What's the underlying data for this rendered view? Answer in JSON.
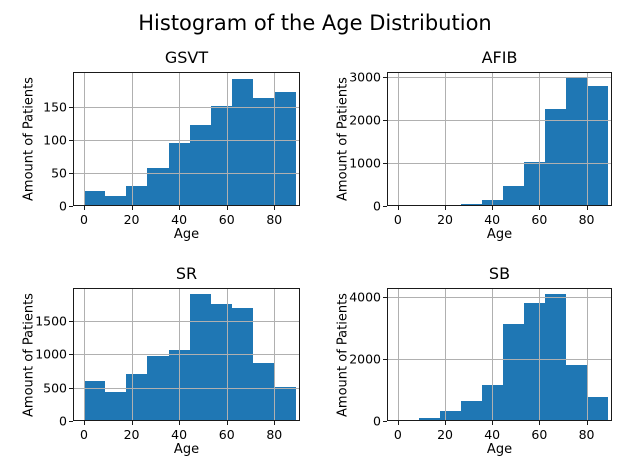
{
  "title": "Histogram of the Age Distribution",
  "bar_color": "#1f77b4",
  "grid_color": "#b0b0b0",
  "chart_data": [
    {
      "type": "bar",
      "title": "GSVT",
      "xlabel": "Age",
      "ylabel": "Amount of Patients",
      "bin_edges": [
        0,
        8.9,
        17.8,
        26.7,
        35.6,
        44.5,
        53.4,
        62.3,
        71.2,
        80.1,
        89
      ],
      "values": [
        22,
        15,
        31,
        58,
        95,
        122,
        151,
        193,
        164,
        173
      ],
      "xlim": [
        -4.6,
        90.8
      ],
      "ylim": [
        0,
        203
      ],
      "xticks": [
        0,
        20,
        40,
        60,
        80
      ],
      "yticks": [
        0,
        50,
        100,
        150
      ],
      "grid": true,
      "legend": "none",
      "bar_color": "#1f77b4"
    },
    {
      "type": "bar",
      "title": "AFIB",
      "xlabel": "Age",
      "ylabel": "Amount of Patients",
      "bin_edges": [
        0,
        8.9,
        17.8,
        26.7,
        35.6,
        44.5,
        53.4,
        62.3,
        71.2,
        80.1,
        89
      ],
      "values": [
        35,
        10,
        25,
        55,
        145,
        470,
        1030,
        2260,
        2960,
        2790
      ],
      "xlim": [
        -4.6,
        90.8
      ],
      "ylim": [
        0,
        3110
      ],
      "xticks": [
        0,
        20,
        40,
        60,
        80
      ],
      "yticks": [
        0,
        1000,
        2000,
        3000
      ],
      "grid": true,
      "legend": "none",
      "bar_color": "#1f77b4"
    },
    {
      "type": "bar",
      "title": "SR",
      "xlabel": "Age",
      "ylabel": "Amount of Patients",
      "bin_edges": [
        0,
        8.9,
        17.8,
        26.7,
        35.6,
        44.5,
        53.4,
        62.3,
        71.2,
        80.1,
        89
      ],
      "values": [
        600,
        440,
        700,
        980,
        1060,
        1900,
        1750,
        1700,
        870,
        510
      ],
      "xlim": [
        -4.6,
        90.8
      ],
      "ylim": [
        0,
        1995
      ],
      "xticks": [
        0,
        20,
        40,
        60,
        80
      ],
      "yticks": [
        0,
        500,
        1000,
        1500
      ],
      "grid": true,
      "legend": "none",
      "bar_color": "#1f77b4"
    },
    {
      "type": "bar",
      "title": "SB",
      "xlabel": "Age",
      "ylabel": "Amount of Patients",
      "bin_edges": [
        0,
        8.9,
        17.8,
        26.7,
        35.6,
        44.5,
        53.4,
        62.3,
        71.2,
        80.1,
        89
      ],
      "values": [
        30,
        85,
        320,
        640,
        1180,
        3130,
        3820,
        4100,
        1800,
        770
      ],
      "xlim": [
        -4.6,
        90.8
      ],
      "ylim": [
        0,
        4305
      ],
      "xticks": [
        0,
        20,
        40,
        60,
        80
      ],
      "yticks": [
        0,
        2000,
        4000
      ],
      "grid": true,
      "legend": "none",
      "bar_color": "#1f77b4"
    }
  ]
}
